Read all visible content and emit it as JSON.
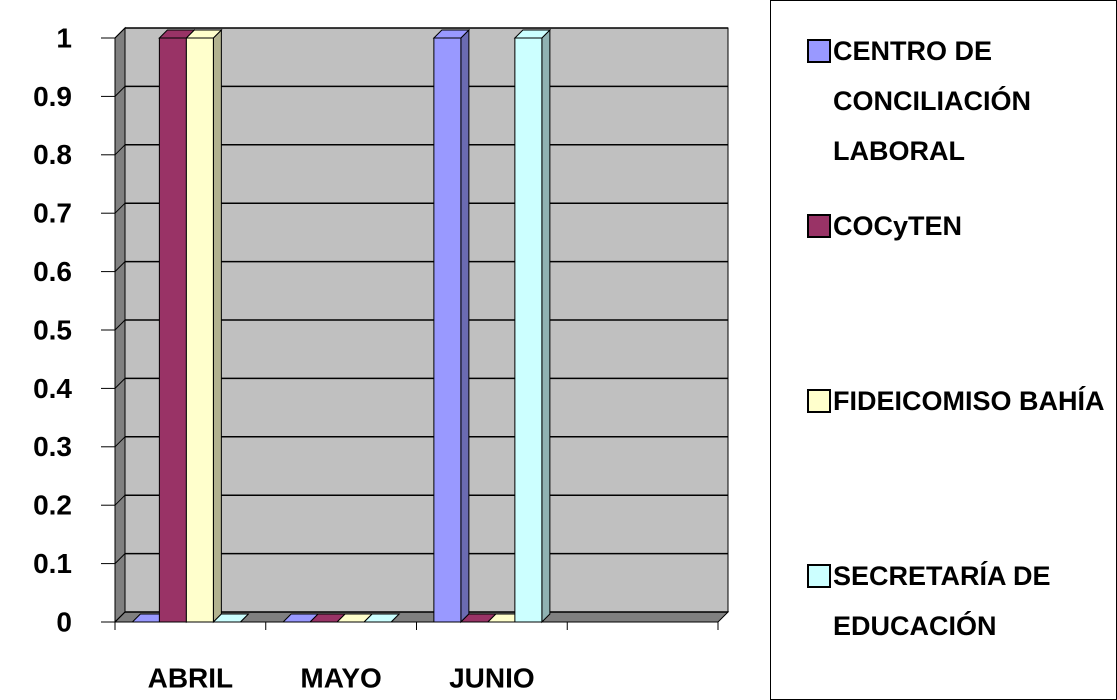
{
  "chart_data": {
    "type": "bar",
    "categories": [
      "ABRIL",
      "MAYO",
      "JUNIO",
      null
    ],
    "series": [
      {
        "name": "CENTRO DE CONCILIACIÓN LABORAL",
        "color": "#9999ff",
        "values": [
          0,
          0,
          1,
          null
        ]
      },
      {
        "name": "COCyTEN",
        "color": "#993366",
        "values": [
          1,
          0,
          0,
          null
        ]
      },
      {
        "name": "FIDEICOMISO BAHÍA",
        "color": "#ffffcc",
        "values": [
          1,
          0,
          0,
          null
        ]
      },
      {
        "name": "SECRETARÍA DE EDUCACIÓN",
        "color": "#ccffff",
        "values": [
          0,
          0,
          1,
          null
        ]
      }
    ],
    "ylim": [
      0,
      1
    ],
    "yticks": [
      0,
      0.1,
      0.2,
      0.3,
      0.4,
      0.5,
      0.6,
      0.7,
      0.8,
      0.9,
      1
    ],
    "grid": true,
    "legend": "right"
  }
}
